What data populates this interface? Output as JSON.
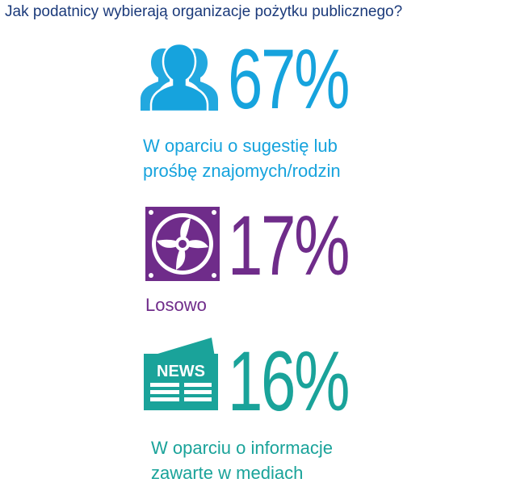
{
  "title": "Jak podatnicy wybierają organizacje pożytku publicznego?",
  "items": [
    {
      "icon": "people-icon",
      "percent": "67%",
      "value": 67,
      "label_line1": "W oparciu o sugestię lub",
      "label_line2": "prośbę znajomych/rodzin",
      "color": "#16a3dd"
    },
    {
      "icon": "fan-icon",
      "percent": "17%",
      "value": 17,
      "label_line1": "Losowo",
      "color": "#6f2c8a"
    },
    {
      "icon": "newspaper-icon",
      "percent": "16%",
      "value": 16,
      "icon_text": "NEWS",
      "label_line1": "W oparciu o informacje",
      "label_line2": "zawarte w mediach",
      "color": "#1aa39a"
    }
  ]
}
